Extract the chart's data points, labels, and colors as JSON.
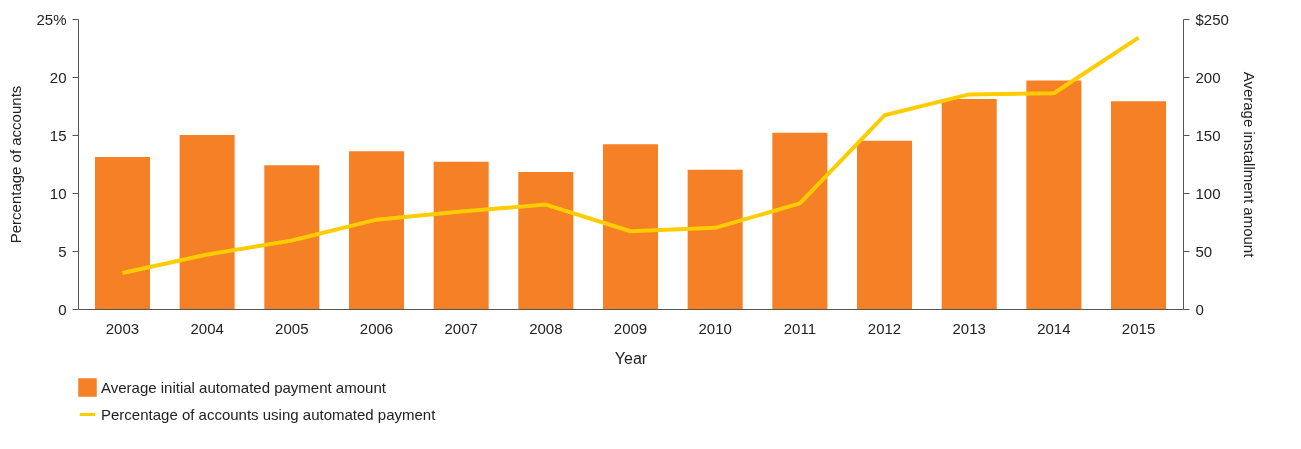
{
  "chart_data": {
    "type": "bar",
    "xlabel": "Year",
    "ylabel": "Percentage of accounts",
    "y2label": "Average installment amount",
    "categories": [
      "2003",
      "2004",
      "2005",
      "2006",
      "2007",
      "2008",
      "2009",
      "2010",
      "2011",
      "2012",
      "2013",
      "2014",
      "2015"
    ],
    "series": [
      {
        "name": "Average initial automated payment amount",
        "axis": "y2",
        "color": "#f58025",
        "values": [
          131,
          150,
          124,
          136,
          127,
          118,
          142,
          120,
          152,
          145,
          181,
          197,
          179
        ]
      },
      {
        "name": "Percentage of accounts using automated payment",
        "type": "line",
        "color": "#ffcc00",
        "values": [
          3.1,
          4.7,
          5.9,
          7.7,
          8.4,
          9.0,
          6.7,
          7.0,
          9.1,
          16.7,
          18.5,
          18.6,
          23.4
        ]
      }
    ],
    "ylim": [
      0,
      25
    ],
    "yticks": [
      0,
      5,
      10,
      15,
      20,
      {
        "value": 25,
        "label": "25%"
      }
    ],
    "y2lim": [
      0,
      250
    ],
    "y2ticks": [
      0,
      50,
      100,
      150,
      200,
      {
        "value": 250,
        "label": "$250"
      }
    ],
    "grid": false,
    "legend": "bottom"
  }
}
